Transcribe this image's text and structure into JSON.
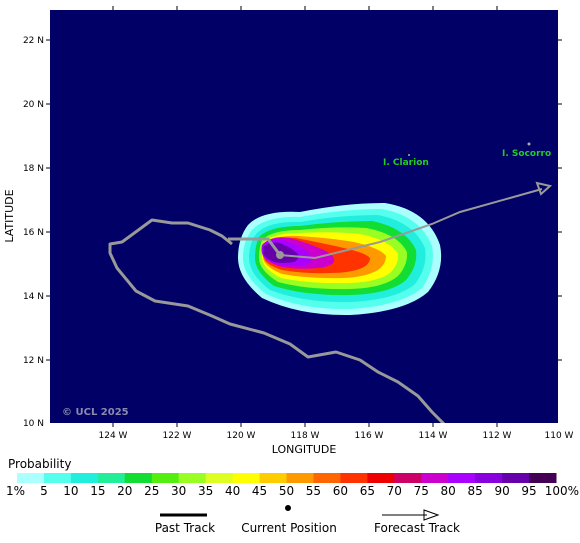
{
  "map": {
    "lat_ticks": [
      "22 N",
      "20 N",
      "18 N",
      "16 N",
      "14 N",
      "12 N",
      "10 N"
    ],
    "lon_ticks": [
      "124 W",
      "122 W",
      "120 W",
      "118 W",
      "116 W",
      "114 W",
      "112 W",
      "110 W"
    ],
    "ylabel": "LATITUDE",
    "xlabel": "LONGITUDE",
    "copyright": "© UCL 2025",
    "islands": [
      {
        "name": "I. Clarion"
      },
      {
        "name": "I. Socorro"
      }
    ],
    "colors": {
      "ocean": "#000066",
      "land_outline": "#999999",
      "track": "#999999",
      "island_label": "#22cc22"
    }
  },
  "colorbar": {
    "title": "Probability",
    "labels": [
      "1%",
      "5",
      "10",
      "15",
      "20",
      "25",
      "30",
      "35",
      "40",
      "45",
      "50",
      "55",
      "60",
      "65",
      "70",
      "75",
      "80",
      "85",
      "90",
      "95",
      "100%"
    ],
    "colors": [
      "#aaffff",
      "#55ffee",
      "#22eedd",
      "#22ee99",
      "#11dd33",
      "#55ee11",
      "#99ff22",
      "#ddff22",
      "#ffff00",
      "#ffcc00",
      "#ff9900",
      "#ff6600",
      "#ff3300",
      "#ee0000",
      "#cc0066",
      "#cc00cc",
      "#aa00ff",
      "#8800dd",
      "#6600aa",
      "#440055"
    ]
  },
  "legend": {
    "past_track": "Past Track",
    "current_position": "Current Position",
    "forecast_track": "Forecast Track"
  }
}
